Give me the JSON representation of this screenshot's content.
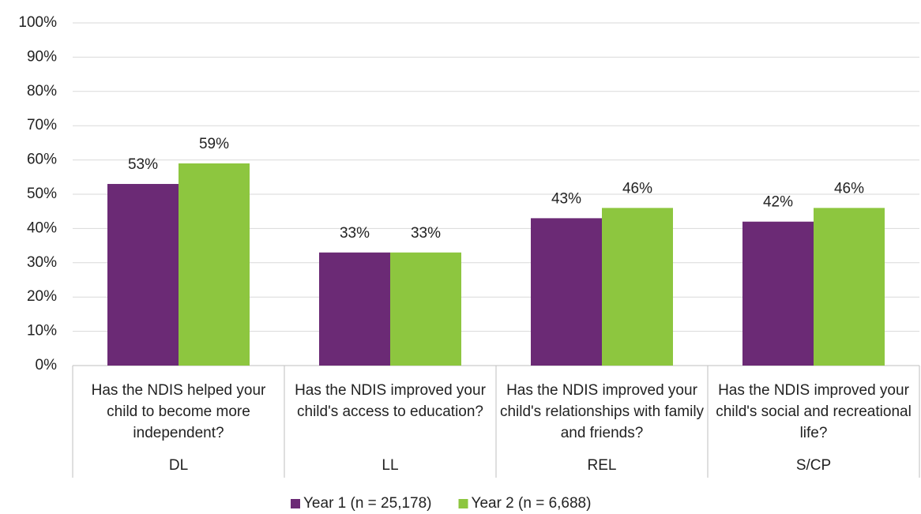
{
  "chart_data": {
    "type": "bar",
    "categories": [
      "Has the NDIS helped your child to become more independent?",
      "Has the NDIS improved your child's access to education?",
      "Has the NDIS improved your child's relationships with family and friends?",
      "Has the NDIS improved your child's social and recreational life?"
    ],
    "group_labels": [
      "DL",
      "LL",
      "REL",
      "S/CP"
    ],
    "series": [
      {
        "name": "Year 1 (n = 25,178)",
        "color": "#6b2a75",
        "values": [
          53,
          33,
          43,
          42
        ],
        "value_labels": [
          "53%",
          "33%",
          "43%",
          "42%"
        ]
      },
      {
        "name": "Year 2 (n = 6,688)",
        "color": "#8dc63f",
        "values": [
          59,
          33,
          46,
          46
        ],
        "value_labels": [
          "59%",
          "33%",
          "46%",
          "46%"
        ]
      }
    ],
    "ylim": [
      0,
      100
    ],
    "yticks": [
      {
        "value": 0,
        "label": "0%"
      },
      {
        "value": 10,
        "label": "10%"
      },
      {
        "value": 20,
        "label": "20%"
      },
      {
        "value": 30,
        "label": "30%"
      },
      {
        "value": 40,
        "label": "40%"
      },
      {
        "value": 50,
        "label": "50%"
      },
      {
        "value": 60,
        "label": "60%"
      },
      {
        "value": 70,
        "label": "70%"
      },
      {
        "value": 80,
        "label": "80%"
      },
      {
        "value": 90,
        "label": "90%"
      },
      {
        "value": 100,
        "label": "100%"
      }
    ],
    "grid": true,
    "legend": "bottom"
  }
}
